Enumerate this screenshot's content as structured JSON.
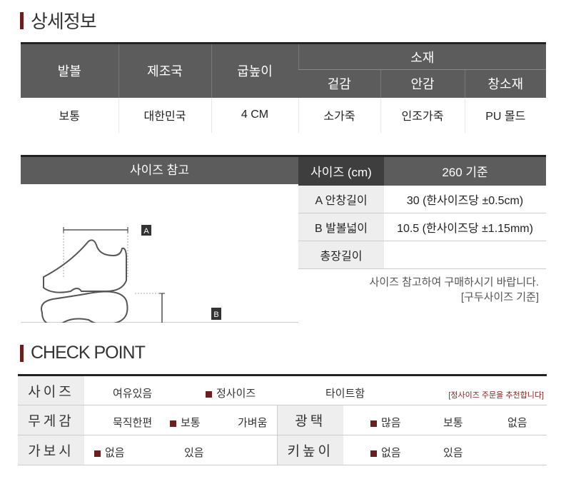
{
  "detail": {
    "title": "상세정보",
    "headers": [
      "발볼",
      "제조국",
      "굽높이",
      "소재"
    ],
    "material_sub": [
      "겉감",
      "안감",
      "창소재"
    ],
    "values": [
      "보통",
      "대한민국",
      "4 CM",
      "소가죽",
      "인조가죽",
      "PU 몰드"
    ]
  },
  "size": {
    "ref_title": "사이즈 참고",
    "label_a": "A",
    "label_b": "B",
    "header": [
      "사이즈 (cm)",
      "260 기준"
    ],
    "rows": [
      {
        "label": "A  안창길이",
        "value": "30 (한사이즈당 ±0.5cm)"
      },
      {
        "label": "B  발볼넓이",
        "value": "10.5 (한사이즈당 ±1.15mm)"
      },
      {
        "label": "총장길이",
        "value": ""
      }
    ],
    "note1": "사이즈 참고하여 구매하시기 바랍니다.",
    "note2": "[구두사이즈 기준]"
  },
  "check": {
    "title": "CHECK POINT",
    "marker_color": "#6b1f1f",
    "size_label": "사이즈",
    "size_opts": [
      "여유있음",
      "정사이즈",
      "타이트함"
    ],
    "size_selected": 1,
    "recommend": "[정사이즈 주문을 추천합니다]",
    "weight_label": "무게감",
    "weight_opts": [
      "묵직한편",
      "보통",
      "가벼움"
    ],
    "weight_selected": 1,
    "gloss_label": "광택",
    "gloss_opts": [
      "많음",
      "보통",
      "없음"
    ],
    "gloss_selected": 0,
    "lining_label": "가보시",
    "lining_opts": [
      "없음",
      "있음"
    ],
    "lining_selected": 0,
    "height_label": "키높이",
    "height_opts": [
      "없음",
      "있음"
    ],
    "height_selected": 0
  }
}
